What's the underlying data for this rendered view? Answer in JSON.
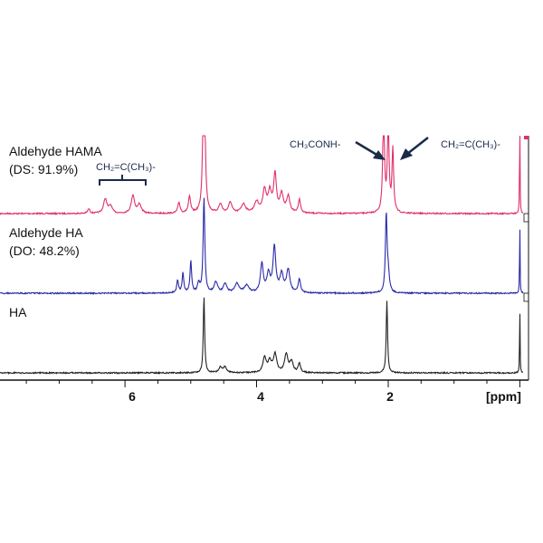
{
  "chart_data": {
    "type": "line",
    "x_axis": {
      "unit": "[ppm]",
      "reversed": true,
      "range": [
        7.9,
        -0.05
      ],
      "ticks": [
        {
          "value": 6,
          "label": "6"
        },
        {
          "value": 4,
          "label": "4"
        },
        {
          "value": 2,
          "label": "2"
        }
      ]
    },
    "series": [
      {
        "name_lines": [
          "Aldehyde HAMA",
          "(DS: 91.9%)"
        ],
        "color": "#e0306a",
        "baseline_offset": 2,
        "peaks": [
          {
            "ppm": 6.55,
            "h": 0.05,
            "w": 0.02
          },
          {
            "ppm": 6.3,
            "h": 0.16,
            "w": 0.03
          },
          {
            "ppm": 6.22,
            "h": 0.08,
            "w": 0.03
          },
          {
            "ppm": 5.88,
            "h": 0.2,
            "w": 0.03
          },
          {
            "ppm": 5.78,
            "h": 0.1,
            "w": 0.03
          },
          {
            "ppm": 5.18,
            "h": 0.12,
            "w": 0.02
          },
          {
            "ppm": 5.02,
            "h": 0.18,
            "w": 0.02
          },
          {
            "ppm": 4.8,
            "h": 2.5,
            "w": 0.015
          },
          {
            "ppm": 4.55,
            "h": 0.1,
            "w": 0.03
          },
          {
            "ppm": 4.4,
            "h": 0.12,
            "w": 0.03
          },
          {
            "ppm": 4.2,
            "h": 0.1,
            "w": 0.04
          },
          {
            "ppm": 4.0,
            "h": 0.12,
            "w": 0.04
          },
          {
            "ppm": 3.88,
            "h": 0.25,
            "w": 0.03
          },
          {
            "ppm": 3.8,
            "h": 0.22,
            "w": 0.03
          },
          {
            "ppm": 3.72,
            "h": 0.42,
            "w": 0.025
          },
          {
            "ppm": 3.62,
            "h": 0.2,
            "w": 0.03
          },
          {
            "ppm": 3.52,
            "h": 0.18,
            "w": 0.03
          },
          {
            "ppm": 3.35,
            "h": 0.15,
            "w": 0.02
          },
          {
            "ppm": 2.07,
            "h": 1.2,
            "w": 0.015
          },
          {
            "ppm": 2.0,
            "h": 1.0,
            "w": 0.015
          },
          {
            "ppm": 1.93,
            "h": 0.7,
            "w": 0.015
          },
          {
            "ppm": 0.0,
            "h": 1.2,
            "w": 0.004
          }
        ]
      },
      {
        "name_lines": [
          "Aldehyde HA",
          "(DO: 48.2%)"
        ],
        "color": "#2a2aa8",
        "baseline_offset": 1,
        "peaks": [
          {
            "ppm": 5.2,
            "h": 0.14,
            "w": 0.015
          },
          {
            "ppm": 5.12,
            "h": 0.22,
            "w": 0.015
          },
          {
            "ppm": 5.0,
            "h": 0.35,
            "w": 0.015
          },
          {
            "ppm": 4.88,
            "h": 0.1,
            "w": 0.02
          },
          {
            "ppm": 4.8,
            "h": 1.05,
            "w": 0.015
          },
          {
            "ppm": 4.62,
            "h": 0.12,
            "w": 0.03
          },
          {
            "ppm": 4.48,
            "h": 0.1,
            "w": 0.03
          },
          {
            "ppm": 4.3,
            "h": 0.1,
            "w": 0.04
          },
          {
            "ppm": 4.15,
            "h": 0.08,
            "w": 0.04
          },
          {
            "ppm": 3.92,
            "h": 0.32,
            "w": 0.025
          },
          {
            "ppm": 3.82,
            "h": 0.2,
            "w": 0.03
          },
          {
            "ppm": 3.73,
            "h": 0.5,
            "w": 0.025
          },
          {
            "ppm": 3.62,
            "h": 0.2,
            "w": 0.03
          },
          {
            "ppm": 3.52,
            "h": 0.25,
            "w": 0.03
          },
          {
            "ppm": 3.35,
            "h": 0.15,
            "w": 0.02
          },
          {
            "ppm": 2.03,
            "h": 0.85,
            "w": 0.015
          },
          {
            "ppm": 2.0,
            "h": 0.2,
            "w": 0.02
          },
          {
            "ppm": 0.0,
            "h": 0.85,
            "w": 0.004
          }
        ]
      },
      {
        "name_lines": [
          "HA"
        ],
        "color": "#222222",
        "baseline_offset": 0,
        "peaks": [
          {
            "ppm": 4.8,
            "h": 0.85,
            "w": 0.012
          },
          {
            "ppm": 4.55,
            "h": 0.06,
            "w": 0.03
          },
          {
            "ppm": 4.48,
            "h": 0.06,
            "w": 0.03
          },
          {
            "ppm": 3.88,
            "h": 0.16,
            "w": 0.03
          },
          {
            "ppm": 3.8,
            "h": 0.12,
            "w": 0.03
          },
          {
            "ppm": 3.72,
            "h": 0.2,
            "w": 0.03
          },
          {
            "ppm": 3.55,
            "h": 0.2,
            "w": 0.03
          },
          {
            "ppm": 3.47,
            "h": 0.12,
            "w": 0.03
          },
          {
            "ppm": 3.35,
            "h": 0.1,
            "w": 0.02
          },
          {
            "ppm": 2.02,
            "h": 0.8,
            "w": 0.012
          },
          {
            "ppm": 0.0,
            "h": 0.8,
            "w": 0.004
          }
        ]
      }
    ],
    "annotations": [
      {
        "text": "CH₂=C(CH₃)-",
        "target": "methacrylate vinyl peaks"
      },
      {
        "text": "CH₃CONH-",
        "target": "acetamide peak"
      },
      {
        "text": "CH₂=C(CH₃)-",
        "target": "methacrylate methyl peak"
      }
    ]
  }
}
